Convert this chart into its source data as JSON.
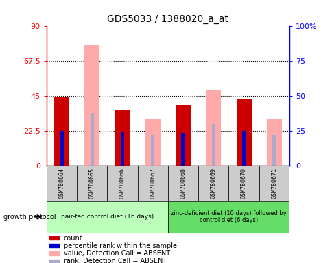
{
  "title": "GDS5033 / 1388020_a_at",
  "samples": [
    "GSM780664",
    "GSM780665",
    "GSM780666",
    "GSM780667",
    "GSM780668",
    "GSM780669",
    "GSM780670",
    "GSM780671"
  ],
  "count_values": [
    44,
    0,
    36,
    0,
    39,
    0,
    43,
    0
  ],
  "rank_values": [
    22.5,
    0,
    22,
    0,
    21,
    0,
    22.5,
    0
  ],
  "absent_value_values": [
    0,
    78,
    0,
    30,
    0,
    49,
    0,
    30
  ],
  "absent_rank_values": [
    0,
    34,
    0,
    20,
    0,
    27,
    0,
    20
  ],
  "left_ylim": [
    0,
    90
  ],
  "right_ylim": [
    0,
    100
  ],
  "left_yticks": [
    0,
    22.5,
    45,
    67.5,
    90
  ],
  "right_yticks": [
    0,
    25,
    50,
    75,
    100
  ],
  "left_yticklabels": [
    "0",
    "22.5",
    "45",
    "67.5",
    "90"
  ],
  "right_yticklabels": [
    "0",
    "25",
    "50",
    "75",
    "100%"
  ],
  "count_color": "#cc0000",
  "rank_color": "#0000cc",
  "absent_value_color": "#ffaaaa",
  "absent_rank_color": "#aaaacc",
  "group1_label": "pair-fed control diet (16 days)",
  "group2_label": "zinc-deficient diet (10 days) followed by\ncontrol diet (6 days)",
  "group1_color": "#bbffbb",
  "group2_color": "#66dd66",
  "group_protocol_label": "growth protocol",
  "legend_items": [
    "count",
    "percentile rank within the sample",
    "value, Detection Call = ABSENT",
    "rank, Detection Call = ABSENT"
  ],
  "legend_colors": [
    "#cc0000",
    "#0000cc",
    "#ffaaaa",
    "#aaaacc"
  ],
  "main_bar_width": 0.5,
  "rank_bar_width": 0.12,
  "label_box_color": "#cccccc",
  "grid_color": "black",
  "grid_linestyle": "dotted",
  "grid_linewidth": 0.8
}
